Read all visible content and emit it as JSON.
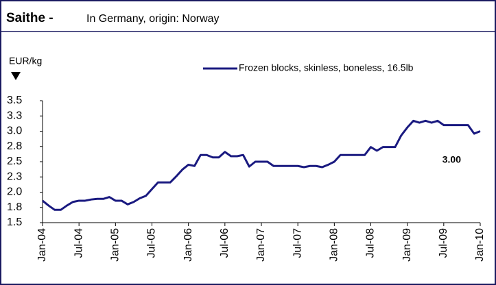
{
  "chart_data": {
    "type": "line",
    "title": "Saithe -",
    "subtitle": "In Germany, origin: Norway",
    "y_label": "EUR/kg",
    "annotation": "3.00",
    "categories": [
      "Jan-04",
      null,
      null,
      null,
      null,
      null,
      "Jul-04",
      null,
      null,
      null,
      null,
      null,
      "Jan-05",
      null,
      null,
      null,
      null,
      null,
      "Jul-05",
      null,
      null,
      null,
      null,
      null,
      "Jan-06",
      null,
      null,
      null,
      null,
      null,
      "Jul-06",
      null,
      null,
      null,
      null,
      null,
      "Jan-07",
      null,
      null,
      null,
      null,
      null,
      "Jul-07",
      null,
      null,
      null,
      null,
      null,
      "Jan-08",
      null,
      null,
      null,
      null,
      null,
      "Jul-08",
      null,
      null,
      null,
      null,
      null,
      "Jan-09",
      null,
      null,
      null,
      null,
      null,
      "Jul-09",
      null,
      null,
      null,
      null,
      null,
      "Jan-10"
    ],
    "series": [
      {
        "name": "Frozen blocks, skinless, boneless, 16.5lb",
        "color": "#1a1a80",
        "values": [
          1.86,
          1.78,
          1.71,
          1.71,
          1.78,
          1.84,
          1.86,
          1.86,
          1.88,
          1.89,
          1.89,
          1.92,
          1.86,
          1.86,
          1.8,
          1.84,
          1.9,
          1.94,
          2.05,
          2.16,
          2.16,
          2.16,
          2.26,
          2.37,
          2.45,
          2.43,
          2.61,
          2.61,
          2.57,
          2.57,
          2.66,
          2.59,
          2.59,
          2.61,
          2.42,
          2.5,
          2.5,
          2.5,
          2.43,
          2.43,
          2.43,
          2.43,
          2.43,
          2.41,
          2.43,
          2.43,
          2.41,
          2.45,
          2.5,
          2.61,
          2.61,
          2.61,
          2.61,
          2.61,
          2.74,
          2.68,
          2.74,
          2.74,
          2.74,
          2.93,
          3.06,
          3.17,
          3.14,
          3.17,
          3.14,
          3.17,
          3.1,
          3.1,
          3.1,
          3.1,
          3.1,
          2.96,
          3.0
        ]
      }
    ],
    "ylim": [
      1.5,
      3.5
    ],
    "yticks": [
      1.5,
      {
        "value": 1.75,
        "label": "1.8"
      },
      {
        "value": 2,
        "label": "2.0"
      },
      {
        "value": 2.25,
        "label": "2.3"
      },
      2.5,
      {
        "value": 2.75,
        "label": "2.8"
      },
      {
        "value": 3,
        "label": "3.0"
      },
      {
        "value": 3.25,
        "label": "3.3"
      },
      3.5
    ],
    "grid": false
  }
}
